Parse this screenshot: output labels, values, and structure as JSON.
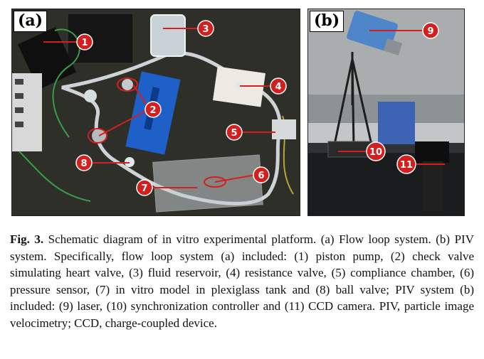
{
  "panel_a": {
    "label": "(a)",
    "markers": [
      "1",
      "2",
      "3",
      "4",
      "5",
      "6",
      "7",
      "8"
    ]
  },
  "panel_b": {
    "label": "(b)",
    "markers": [
      "9",
      "10",
      "11"
    ]
  },
  "caption": {
    "fig_label": "Fig. 3.",
    "text": " Schematic diagram of in vitro experimental platform. (a) Flow loop system. (b) PIV system. Specifically, flow loop system (a) included: (1) piston pump, (2) check valve simulating heart valve, (3) fluid reservoir, (4) resistance valve, (5) compliance chamber, (6) pressure sensor, (7) in vitro model in plexiglass tank and (8) ball valve; PIV system (b) included: (9) laser, (10) synchronization controller and (11) CCD camera. PIV, particle image velocimetry; CCD, charge-coupled device."
  },
  "colors": {
    "marker": "#d41f1f",
    "leader": "#d41f1f",
    "pump_body": "#1f5fc8"
  }
}
